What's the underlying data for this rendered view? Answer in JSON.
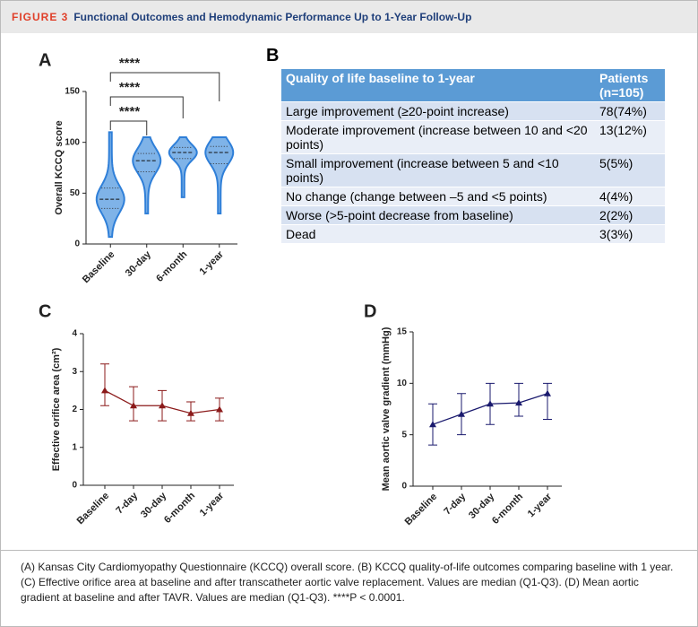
{
  "header": {
    "figure": "FIGURE 3",
    "title": "Functional Outcomes and Hemodynamic Performance Up to 1-Year Follow-Up"
  },
  "chart_data": [
    {
      "type": "violin",
      "label": "A",
      "ylabel": "Overall KCCQ score",
      "categories": [
        "Baseline",
        "30-day",
        "6-month",
        "1-year"
      ],
      "median": [
        44,
        82,
        90,
        90
      ],
      "q1": [
        35,
        71,
        84,
        79
      ],
      "q3": [
        55,
        89,
        95,
        96
      ],
      "min": [
        7,
        30,
        46,
        30
      ],
      "max": [
        110,
        105,
        105,
        105
      ],
      "color": "#7fb3e8",
      "stroke": "#2f7fd8",
      "ylim": [
        0,
        150
      ],
      "yticks": [
        0,
        50,
        100,
        150
      ],
      "significance": [
        "****",
        "****",
        "****"
      ]
    },
    {
      "type": "line",
      "label": "C",
      "ylabel": "Effective orifice area (cm²)",
      "categories": [
        "Baseline",
        "7-day",
        "30-day",
        "6-month",
        "1-year"
      ],
      "series": [
        {
          "color": "#8b1a1a",
          "values": [
            2.5,
            2.1,
            2.1,
            1.9,
            2.0
          ],
          "lower": [
            2.1,
            1.7,
            1.7,
            1.7,
            1.7
          ],
          "upper": [
            3.2,
            2.6,
            2.5,
            2.2,
            2.3
          ]
        }
      ],
      "ylim": [
        0,
        4
      ],
      "yticks": [
        0,
        1,
        2,
        3,
        4
      ]
    },
    {
      "type": "line",
      "label": "D",
      "ylabel": "Mean aortic valve gradient (mmHg)",
      "categories": [
        "Baseline",
        "7-day",
        "30-day",
        "6-month",
        "1-year"
      ],
      "series": [
        {
          "color": "#1a1a6e",
          "values": [
            6,
            7,
            8,
            8.1,
            9
          ],
          "lower": [
            4,
            5,
            6,
            6.8,
            6.5
          ],
          "upper": [
            8,
            9,
            10,
            10,
            10
          ]
        }
      ],
      "ylim": [
        0,
        15
      ],
      "yticks": [
        0,
        5,
        10,
        15
      ]
    }
  ],
  "table": {
    "label": "B",
    "header": [
      "Quality of life baseline to 1-year",
      "Patients (n=105)"
    ],
    "rows": [
      [
        "Large improvement (≥20-point increase)",
        "78(74%)"
      ],
      [
        "Moderate improvement (increase between 10 and <20 points)",
        "13(12%)"
      ],
      [
        "Small improvement (increase between 5 and <10 points)",
        "5(5%)"
      ],
      [
        "No change (change between –5 and <5 points)",
        "4(4%)"
      ],
      [
        "Worse (>5-point decrease from baseline)",
        "2(2%)"
      ],
      [
        "Dead",
        "3(3%)"
      ]
    ]
  },
  "caption": "(A) Kansas City Cardiomyopathy Questionnaire (KCCQ) overall score. (B) KCCQ quality-of-life outcomes comparing baseline with 1 year. (C) Effective orifice area at baseline and after transcatheter aortic valve replacement. Values are median (Q1-Q3). (D) Mean aortic gradient at baseline and after TAVR. Values are median (Q1-Q3). ****P < 0.0001."
}
